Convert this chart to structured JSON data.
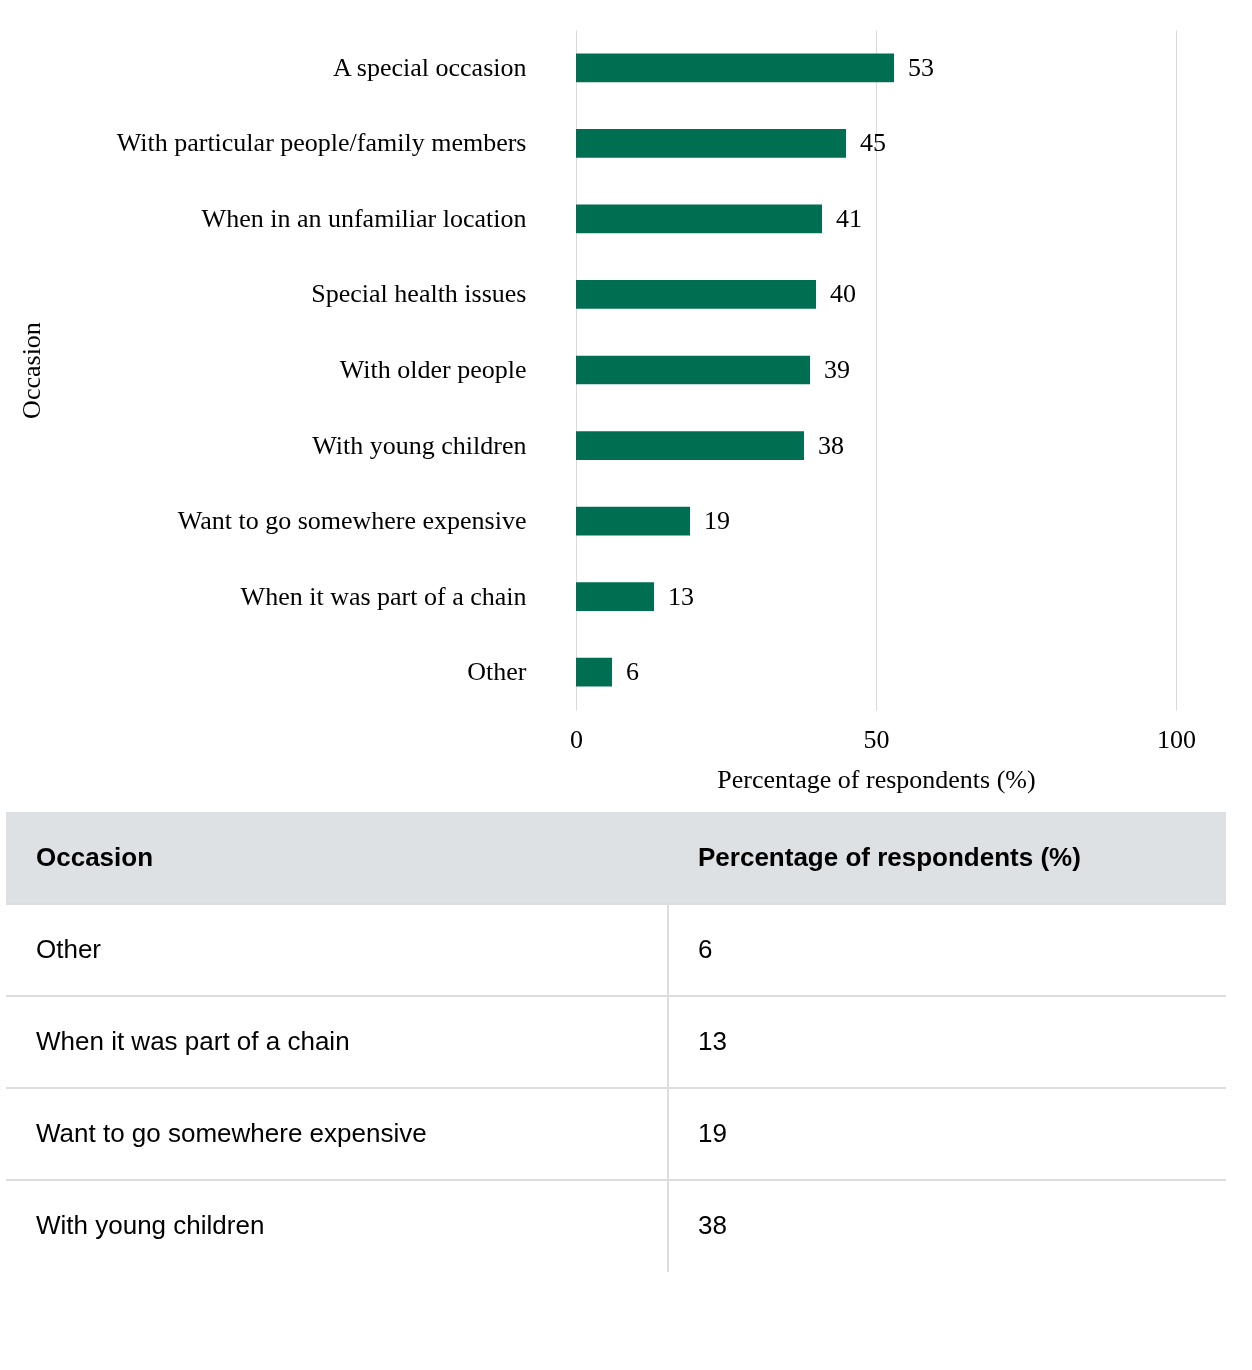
{
  "chart_data": [
    {
      "type": "bar",
      "orientation": "horizontal",
      "xlabel": "Percentage of respondents (%)",
      "ylabel": "Occasion",
      "categories": [
        "A special occasion",
        "With particular people/family members",
        "When in an unfamiliar location",
        "Special health issues",
        "With older people",
        "With young children",
        "Want to go somewhere expensive",
        "When it was part of a chain",
        "Other"
      ],
      "values": [
        53,
        45,
        41,
        40,
        39,
        38,
        19,
        13,
        6
      ],
      "color": "#006f51",
      "xlim": [
        0,
        100
      ],
      "xticks": [
        0,
        50,
        100
      ],
      "grid": "x",
      "data_labels": true
    },
    {
      "type": "other",
      "ylabel": "Occasion",
      "xlabel": "Percentage of respondents (%)",
      "categories": [
        "Other",
        "When it was part of a chain",
        "Want to go somewhere expensive",
        "With young children"
      ],
      "values": [
        6,
        13,
        19,
        38
      ],
      "data_labels": true
    }
  ]
}
